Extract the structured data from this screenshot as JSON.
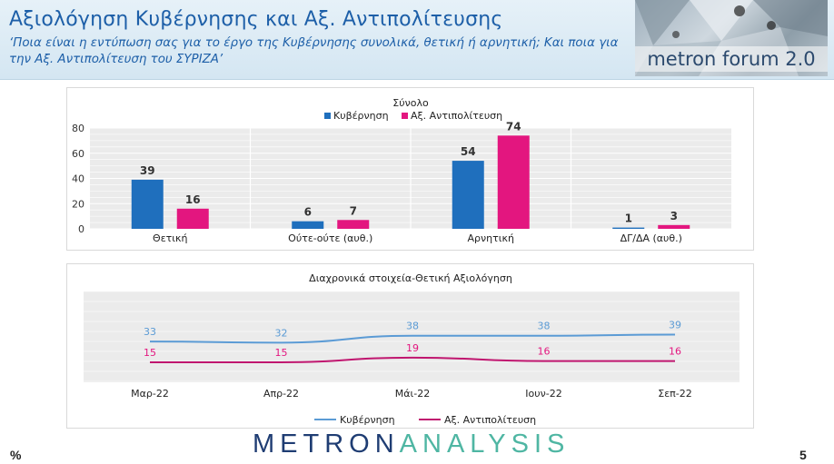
{
  "header": {
    "title": "Αξιολόγηση Κυβέρνησης και Αξ. Αντιπολίτευσης",
    "subtitle": "‘Ποια είναι η εντύπωση σας για το έργο της Κυβέρνησης συνολικά, θετική ή αρνητική; Και ποια για την Αξ. Αντιπολίτευση του ΣΥΡΙΖΑ’",
    "brand": "metron forum 2.0"
  },
  "colors": {
    "government": "#1f6fbd",
    "opposition": "#e3167f",
    "government_line": "#5b9bd5",
    "opposition_line": "#c0166f",
    "title": "#1d5fa8"
  },
  "chart_data": [
    {
      "type": "bar",
      "title": "Σύνολο",
      "categories": [
        "Θετική",
        "Ούτε-ούτε (αυθ.)",
        "Αρνητική",
        "ΔΓ/ΔΑ (αυθ.)"
      ],
      "series": [
        {
          "name": "Κυβέρνηση",
          "values": [
            39,
            6,
            54,
            1
          ]
        },
        {
          "name": "Αξ. Αντιπολίτευση",
          "values": [
            16,
            7,
            74,
            3
          ]
        }
      ],
      "yticks": [
        "0",
        "20",
        "40",
        "60",
        "80"
      ],
      "ylim": [
        0,
        80
      ],
      "legend": "top",
      "grid": true
    },
    {
      "type": "line",
      "title": "Διαχρονικά στοιχεία-Θετική Αξιολόγηση",
      "categories": [
        "Μαρ-22",
        "Απρ-22",
        "Μάι-22",
        "Ιουν-22",
        "Σεπ-22"
      ],
      "series": [
        {
          "name": "Κυβέρνηση",
          "values": [
            33,
            32,
            38,
            38,
            39
          ]
        },
        {
          "name": "Αξ. Αντιπολίτευση",
          "values": [
            15,
            15,
            19,
            16,
            16
          ]
        }
      ],
      "legend": "bottom",
      "grid": true
    }
  ],
  "footer": {
    "percent_sign": "%",
    "logo_metron": "METRON",
    "logo_analysis": "ANALYSIS",
    "page_number": "5"
  }
}
